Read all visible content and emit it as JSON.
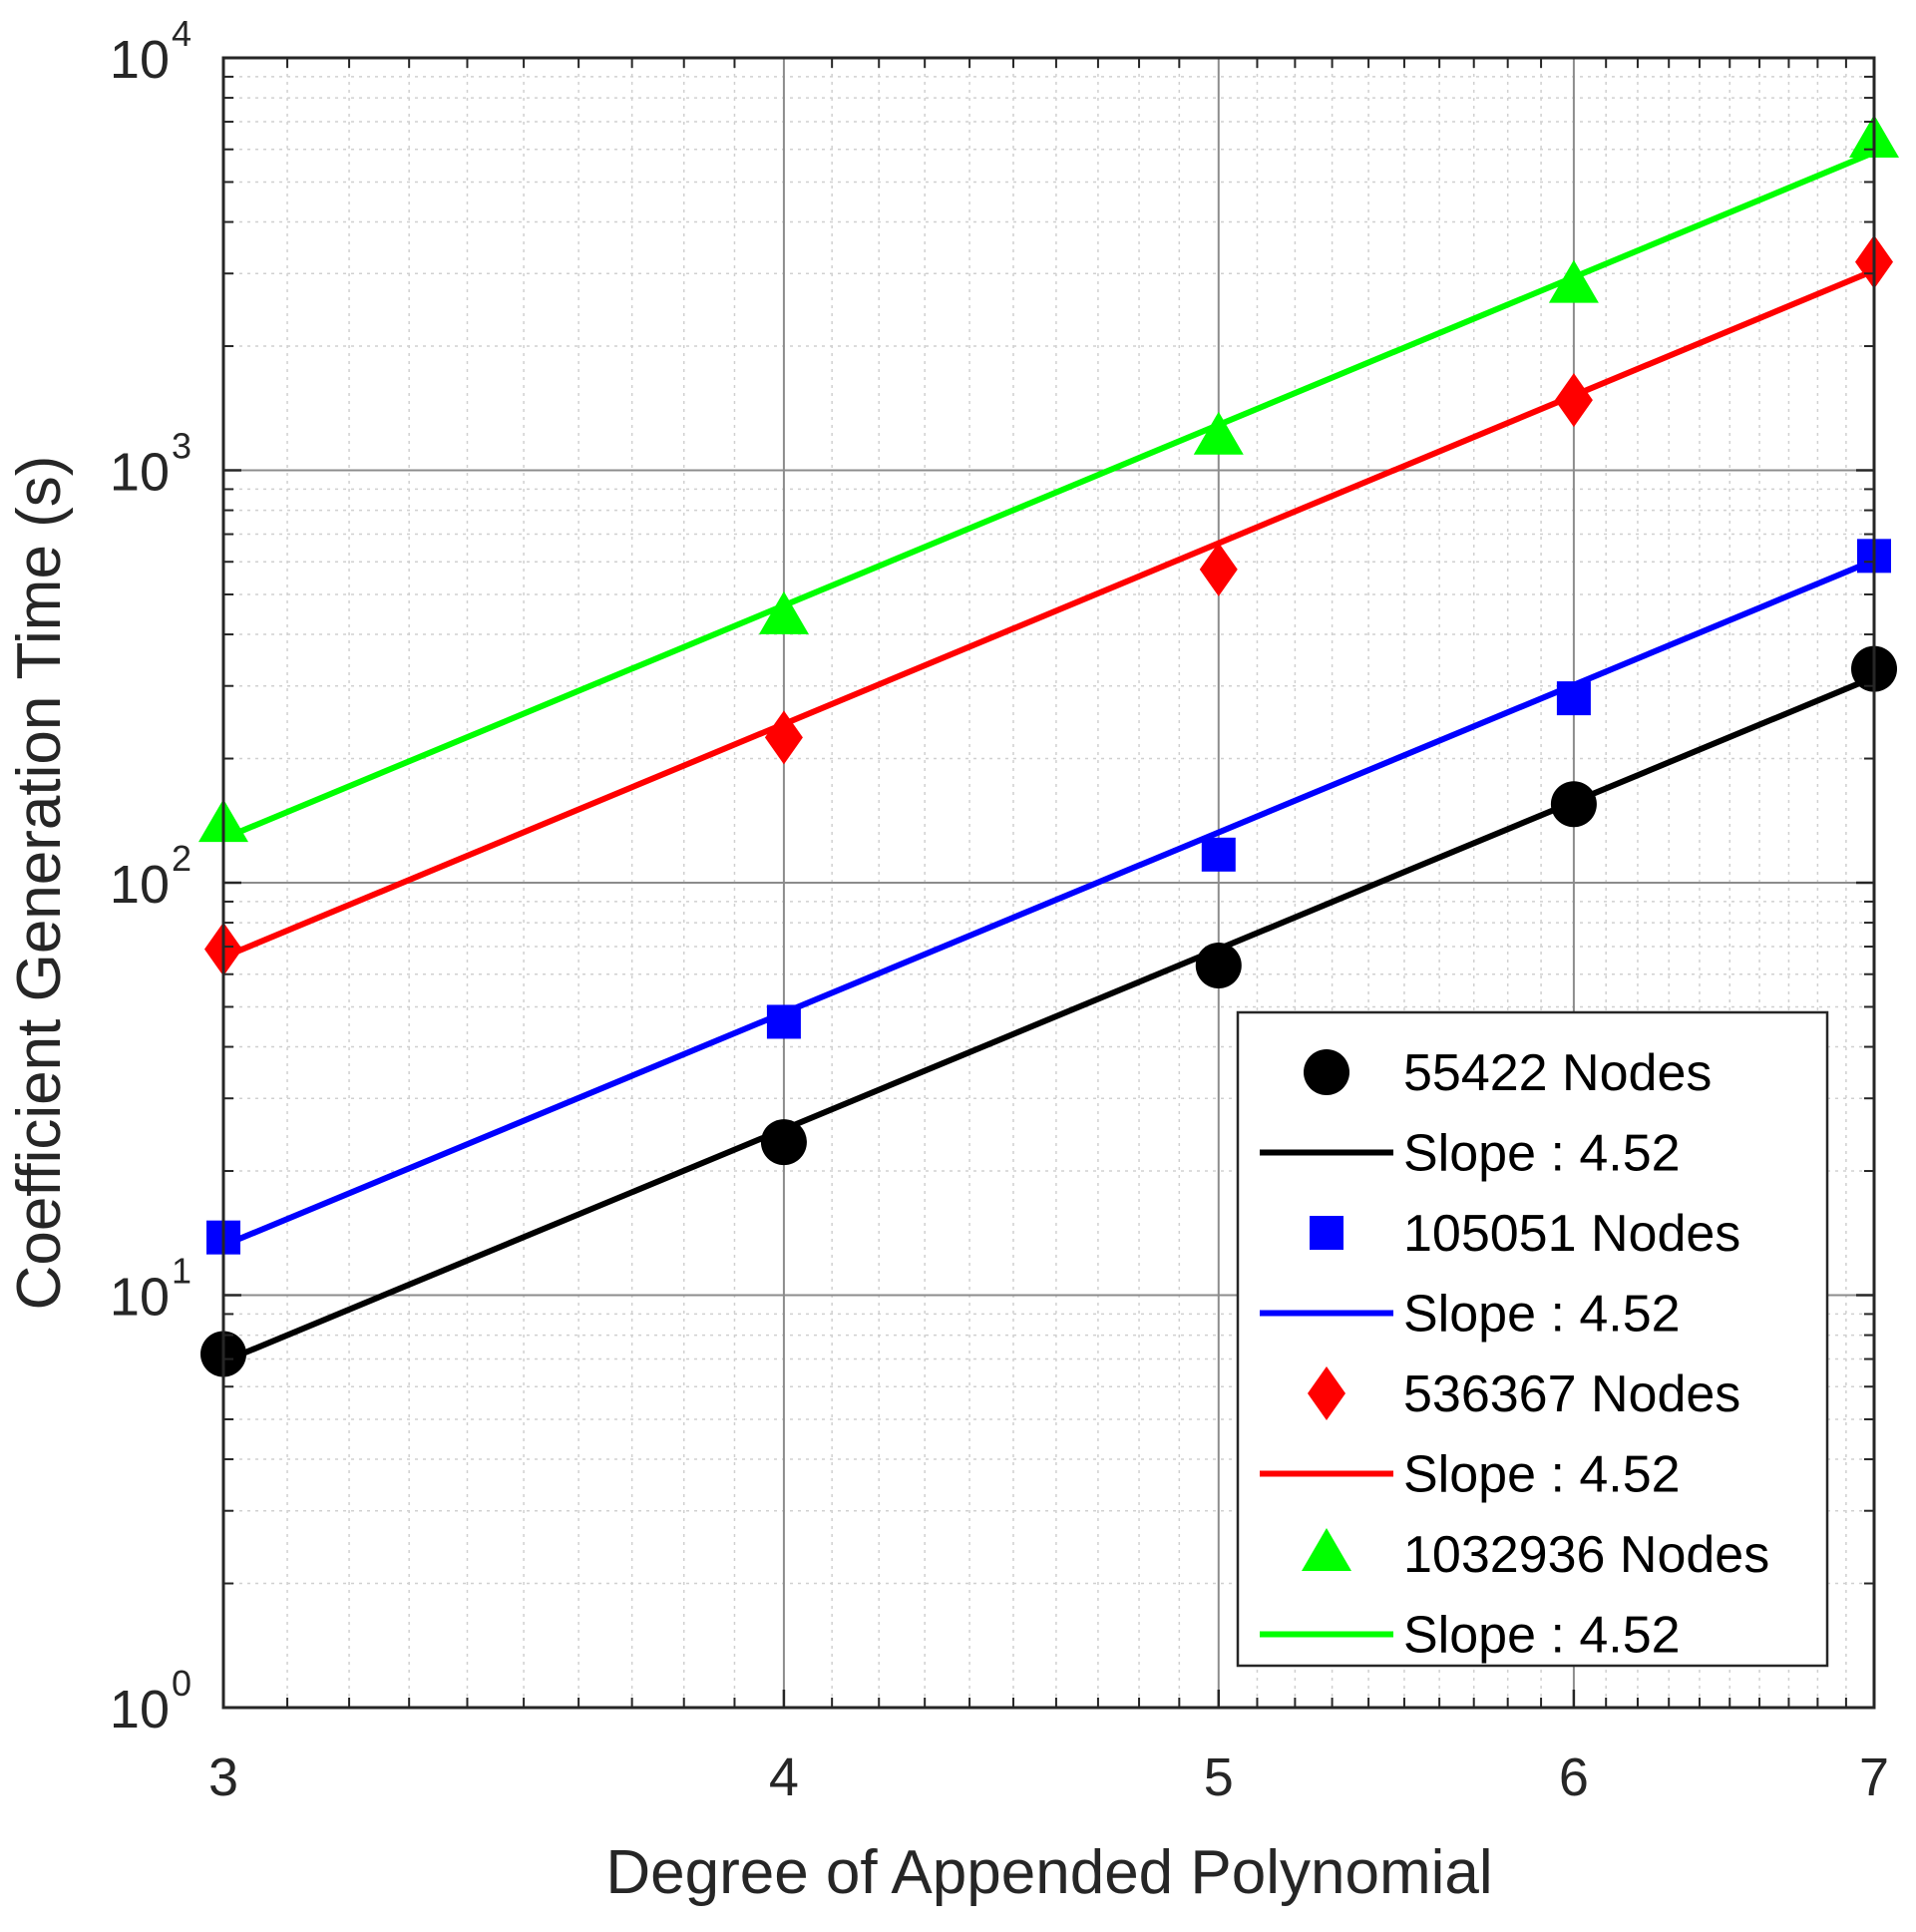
{
  "chart_data": {
    "type": "line",
    "title": "",
    "xlabel": "Degree of Appended Polynomial",
    "ylabel": "Coefficient Generation Time (s)",
    "xscale": "log",
    "yscale": "log",
    "xlim": [
      3,
      7
    ],
    "ylim": [
      1,
      10000
    ],
    "x_ticks": [
      3,
      4,
      5,
      6,
      7
    ],
    "y_ticks": [
      {
        "value": 1,
        "base": "10",
        "exp": "0"
      },
      {
        "value": 10,
        "base": "10",
        "exp": "1"
      },
      {
        "value": 100,
        "base": "10",
        "exp": "2"
      },
      {
        "value": 1000,
        "base": "10",
        "exp": "3"
      },
      {
        "value": 10000,
        "base": "10",
        "exp": "4"
      }
    ],
    "grid": true,
    "legend_position": "bottom-right",
    "series": [
      {
        "name": "55422 Nodes",
        "color": "#000000",
        "marker": "circle",
        "x": [
          3,
          4,
          5,
          6,
          7
        ],
        "values": [
          7.2,
          23.5,
          63,
          155,
          330
        ],
        "fit": {
          "name": "Slope : 4.52",
          "x": [
            3,
            7
          ],
          "values": [
            6.9,
            315
          ]
        }
      },
      {
        "name": "105051 Nodes",
        "color": "#0000ff",
        "marker": "square",
        "x": [
          3,
          4,
          5,
          6,
          7
        ],
        "values": [
          13.8,
          46,
          117,
          280,
          620
        ],
        "fit": {
          "name": "Slope : 4.52",
          "x": [
            3,
            7
          ],
          "values": [
            13.2,
            605
          ]
        }
      },
      {
        "name": "536367 Nodes",
        "color": "#ff0000",
        "marker": "diamond",
        "x": [
          3,
          4,
          5,
          6,
          7
        ],
        "values": [
          69,
          225,
          575,
          1480,
          3200
        ],
        "fit": {
          "name": "Slope : 4.52",
          "x": [
            3,
            7
          ],
          "values": [
            66,
            3050
          ]
        }
      },
      {
        "name": "1032936 Nodes",
        "color": "#00ff00",
        "marker": "triangle",
        "x": [
          3,
          4,
          5,
          6,
          7
        ],
        "values": [
          138,
          440,
          1200,
          2800,
          6300
        ],
        "fit": {
          "name": "Slope : 4.52",
          "x": [
            3,
            7
          ],
          "values": [
            128,
            5900
          ]
        }
      }
    ]
  }
}
